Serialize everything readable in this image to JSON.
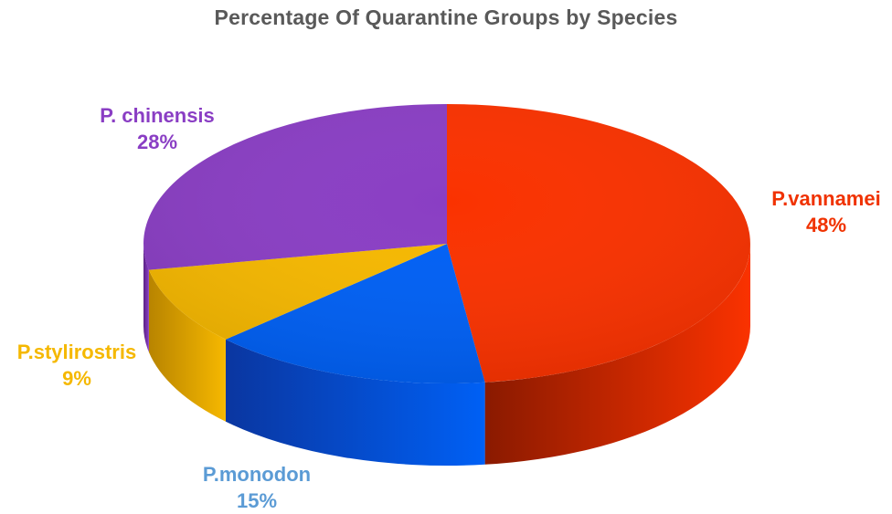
{
  "chart_data": {
    "type": "pie",
    "title": "Percentage Of Quarantine Groups by Species",
    "series": [
      {
        "name": "P.vannamei",
        "value": 48,
        "display": "48%",
        "color": "#fa3200",
        "side_color": "#8a1a00"
      },
      {
        "name": "P.monodon",
        "value": 15,
        "display": "15%",
        "color": "#0060f5",
        "side_color": "#0a36a0"
      },
      {
        "name": "P.stylirostris",
        "value": 9,
        "display": "9%",
        "color": "#f6b800",
        "side_color": "#b88400"
      },
      {
        "name": "P. chinensis",
        "value": 28,
        "display": "28%",
        "color": "#8a3ec4",
        "side_color": "#5a2284"
      }
    ],
    "label_colors": {
      "P.vannamei": "#f03200",
      "P.monodon": "#5b9bd5",
      "P.stylirostris": "#f5b800",
      "P. chinensis": "#8a3ec4"
    },
    "legend": "none"
  }
}
